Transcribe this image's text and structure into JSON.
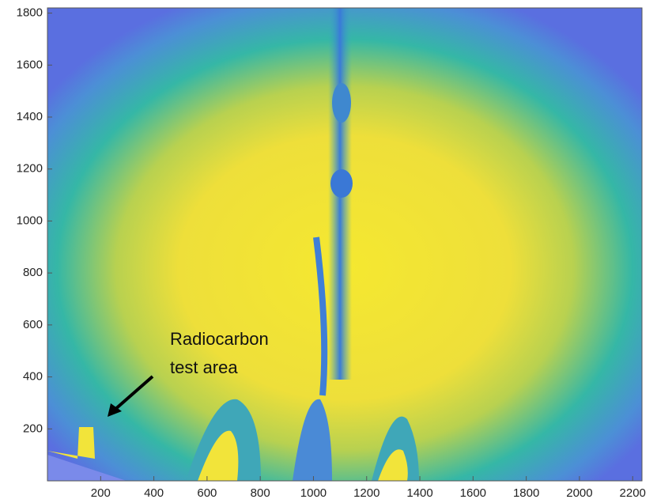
{
  "chart_data": {
    "type": "image",
    "annotation": {
      "lines": [
        "Radiocarbon",
        "test area"
      ]
    },
    "xlim": [
      0,
      2235
    ],
    "ylim": [
      0,
      1820
    ],
    "xticks": [
      200,
      400,
      600,
      800,
      1000,
      1200,
      1400,
      1600,
      1800,
      2000,
      2200
    ],
    "yticks": [
      200,
      400,
      600,
      800,
      1000,
      1200,
      1400,
      1600,
      1800
    ]
  }
}
